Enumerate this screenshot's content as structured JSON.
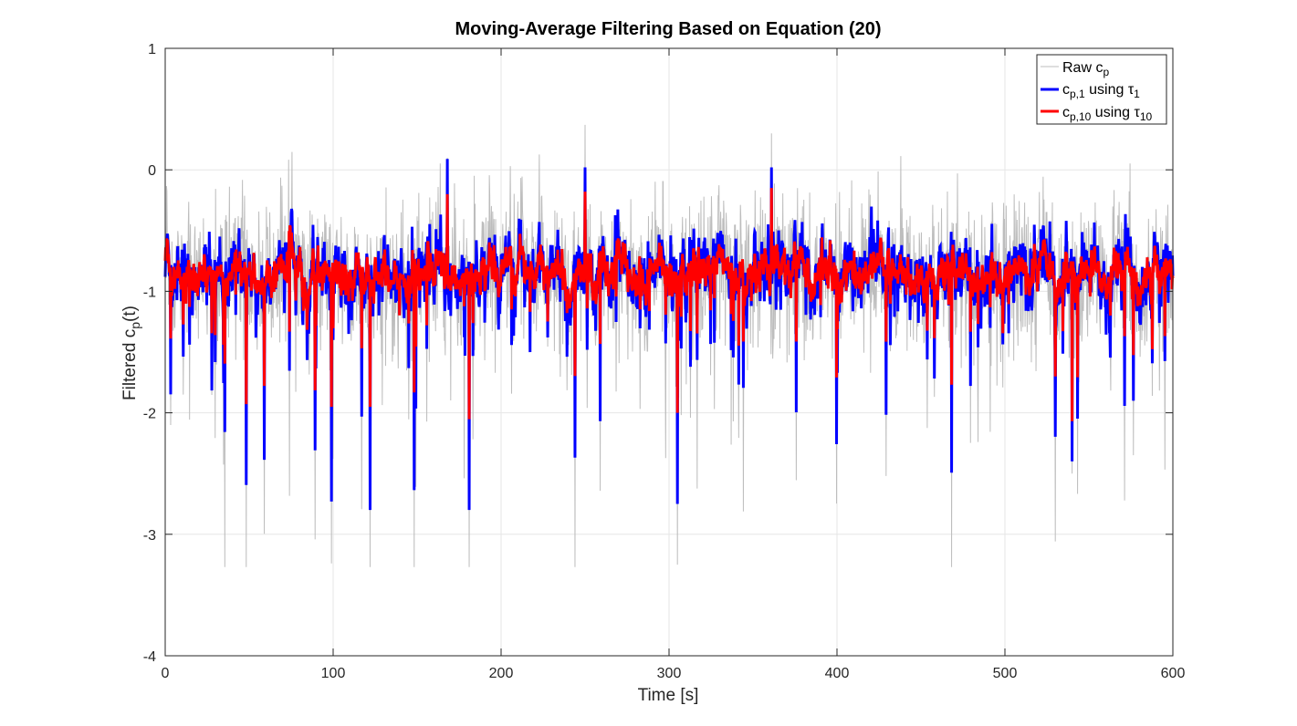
{
  "chart_data": {
    "type": "line",
    "title": "Moving-Average Filtering Based on Equation (20)",
    "xlabel": "Time [s]",
    "ylabel_main": "Filtered c",
    "ylabel_sub": "p",
    "ylabel_tail": "(t)",
    "xlim": [
      0,
      600
    ],
    "ylim": [
      -4,
      1
    ],
    "x_ticks": [
      0,
      100,
      200,
      300,
      400,
      500,
      600
    ],
    "x_tick_labels": [
      "0",
      "100",
      "200",
      "300",
      "400",
      "500",
      "600"
    ],
    "y_ticks": [
      -4,
      -3,
      -2,
      -1,
      0,
      1
    ],
    "y_tick_labels": [
      "-4",
      "-3",
      "-2",
      "-1",
      "0",
      "1"
    ],
    "grid": true,
    "legend_position": "top-right",
    "legend": {
      "raw_main": "Raw c",
      "raw_sub": "p",
      "tau1_main": "c",
      "tau1_sub": "p,1",
      "tau1_mid": " using τ",
      "tau1_sub2": "1",
      "tau10_main": "c",
      "tau10_sub": "p,10",
      "tau10_mid": " using τ",
      "tau10_sub2": "10"
    },
    "colors": {
      "raw": "#bdbdbd",
      "tau1": "#0000ff",
      "tau10": "#ff0000",
      "grid": "#e6e6e6",
      "axis": "#262626"
    },
    "series_summary": [
      {
        "key": "raw",
        "name": "Raw cp",
        "mean": -0.85,
        "min": -3.27,
        "max": 0.38,
        "approx_std": 0.55
      },
      {
        "key": "tau1",
        "name": "cp,1 using τ1",
        "mean": -0.85,
        "min": -2.8,
        "max": 0.1,
        "approx_std": 0.42
      },
      {
        "key": "tau10",
        "name": "cp,10 using τ10",
        "mean": -0.85,
        "min": -2.07,
        "max": -0.05,
        "approx_std": 0.3
      }
    ],
    "notable_extremes": [
      {
        "x": 99,
        "raw": -3.24,
        "tau1": -2.73,
        "tau10": -1.95
      },
      {
        "x": 122,
        "raw": -3.27,
        "tau1": -2.8,
        "tau10": -1.95
      },
      {
        "x": 305,
        "raw": -3.25,
        "tau1": -2.75,
        "tau10": -2.0
      },
      {
        "x": 168,
        "raw": 0.1,
        "tau1": 0.09,
        "tau10": -0.2
      },
      {
        "x": 250,
        "raw": 0.37,
        "tau1": 0.02,
        "tau10": -0.18
      },
      {
        "x": 361,
        "raw": 0.3,
        "tau1": 0.02,
        "tau10": -0.15
      },
      {
        "x": 540,
        "raw": -2.5,
        "tau1": -2.4,
        "tau10": -2.07
      }
    ]
  }
}
